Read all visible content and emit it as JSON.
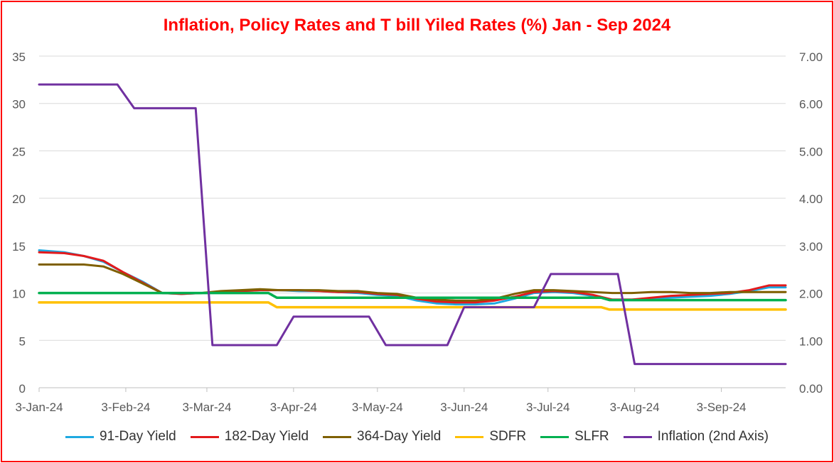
{
  "chart_data": {
    "type": "line",
    "title": "Inflation, Policy Rates and T bill Yiled Rates (%) Jan - Sep 2024",
    "x_tick_labels": [
      "3-Jan-24",
      "3-Feb-24",
      "3-Mar-24",
      "3-Apr-24",
      "3-May-24",
      "3-Jun-24",
      "3-Jul-24",
      "3-Aug-24",
      "3-Sep-24"
    ],
    "x_tick_dates": [
      "2024-01-03",
      "2024-02-03",
      "2024-03-03",
      "2024-04-03",
      "2024-05-03",
      "2024-06-03",
      "2024-07-03",
      "2024-08-03",
      "2024-09-03"
    ],
    "xlim": [
      "2024-01-03",
      "2024-09-26"
    ],
    "ylim": [
      0,
      35
    ],
    "y_ticks": [
      "0",
      "5",
      "10",
      "15",
      "20",
      "25",
      "30",
      "35"
    ],
    "y2lim": [
      0,
      7
    ],
    "y2_ticks": [
      "0.00",
      "1.00",
      "2.00",
      "3.00",
      "4.00",
      "5.00",
      "6.00",
      "7.00"
    ],
    "grid": "horizontal",
    "legend_position": "bottom",
    "series": [
      {
        "name": "91-Day Yield",
        "color": "#1fa9e1",
        "axis": "left",
        "points": [
          [
            "2024-01-03",
            14.5
          ],
          [
            "2024-01-12",
            14.3
          ],
          [
            "2024-01-19",
            13.9
          ],
          [
            "2024-01-26",
            13.3
          ],
          [
            "2024-02-02",
            12.2
          ],
          [
            "2024-02-09",
            11.2
          ],
          [
            "2024-02-16",
            10.0
          ],
          [
            "2024-02-23",
            9.9
          ],
          [
            "2024-03-01",
            10.0
          ],
          [
            "2024-03-08",
            10.1
          ],
          [
            "2024-03-15",
            10.2
          ],
          [
            "2024-03-22",
            10.3
          ],
          [
            "2024-03-29",
            10.3
          ],
          [
            "2024-04-05",
            10.2
          ],
          [
            "2024-04-12",
            10.2
          ],
          [
            "2024-04-19",
            10.1
          ],
          [
            "2024-04-26",
            10.0
          ],
          [
            "2024-05-03",
            9.8
          ],
          [
            "2024-05-10",
            9.7
          ],
          [
            "2024-05-17",
            9.2
          ],
          [
            "2024-05-24",
            8.9
          ],
          [
            "2024-05-31",
            8.8
          ],
          [
            "2024-06-07",
            8.8
          ],
          [
            "2024-06-14",
            8.9
          ],
          [
            "2024-06-21",
            9.4
          ],
          [
            "2024-06-28",
            10.0
          ],
          [
            "2024-07-05",
            10.1
          ],
          [
            "2024-07-12",
            10.0
          ],
          [
            "2024-07-19",
            9.7
          ],
          [
            "2024-07-26",
            9.3
          ],
          [
            "2024-08-02",
            9.3
          ],
          [
            "2024-08-09",
            9.4
          ],
          [
            "2024-08-16",
            9.5
          ],
          [
            "2024-08-23",
            9.6
          ],
          [
            "2024-08-30",
            9.7
          ],
          [
            "2024-09-06",
            9.9
          ],
          [
            "2024-09-13",
            10.2
          ],
          [
            "2024-09-20",
            10.6
          ],
          [
            "2024-09-26",
            10.6
          ]
        ]
      },
      {
        "name": "182-Day Yield",
        "color": "#e31a1c",
        "axis": "left",
        "points": [
          [
            "2024-01-03",
            14.3
          ],
          [
            "2024-01-12",
            14.2
          ],
          [
            "2024-01-19",
            13.9
          ],
          [
            "2024-01-26",
            13.4
          ],
          [
            "2024-02-02",
            12.2
          ],
          [
            "2024-02-09",
            11.1
          ],
          [
            "2024-02-16",
            10.0
          ],
          [
            "2024-02-23",
            9.9
          ],
          [
            "2024-03-01",
            10.0
          ],
          [
            "2024-03-08",
            10.1
          ],
          [
            "2024-03-15",
            10.2
          ],
          [
            "2024-03-22",
            10.3
          ],
          [
            "2024-03-29",
            10.3
          ],
          [
            "2024-04-05",
            10.3
          ],
          [
            "2024-04-12",
            10.2
          ],
          [
            "2024-04-19",
            10.1
          ],
          [
            "2024-04-26",
            10.1
          ],
          [
            "2024-05-03",
            9.9
          ],
          [
            "2024-05-10",
            9.8
          ],
          [
            "2024-05-17",
            9.4
          ],
          [
            "2024-05-24",
            9.1
          ],
          [
            "2024-05-31",
            9.0
          ],
          [
            "2024-06-07",
            9.0
          ],
          [
            "2024-06-14",
            9.2
          ],
          [
            "2024-06-21",
            9.6
          ],
          [
            "2024-06-28",
            10.1
          ],
          [
            "2024-07-05",
            10.2
          ],
          [
            "2024-07-12",
            10.1
          ],
          [
            "2024-07-19",
            9.8
          ],
          [
            "2024-07-26",
            9.3
          ],
          [
            "2024-08-02",
            9.3
          ],
          [
            "2024-08-09",
            9.5
          ],
          [
            "2024-08-16",
            9.7
          ],
          [
            "2024-08-23",
            9.8
          ],
          [
            "2024-08-30",
            9.9
          ],
          [
            "2024-09-06",
            10.0
          ],
          [
            "2024-09-13",
            10.3
          ],
          [
            "2024-09-20",
            10.8
          ],
          [
            "2024-09-26",
            10.8
          ]
        ]
      },
      {
        "name": "364-Day Yield",
        "color": "#7f6000",
        "axis": "left",
        "points": [
          [
            "2024-01-03",
            13.0
          ],
          [
            "2024-01-12",
            13.0
          ],
          [
            "2024-01-19",
            13.0
          ],
          [
            "2024-01-26",
            12.8
          ],
          [
            "2024-02-02",
            12.0
          ],
          [
            "2024-02-09",
            11.0
          ],
          [
            "2024-02-16",
            10.0
          ],
          [
            "2024-02-23",
            10.0
          ],
          [
            "2024-03-01",
            10.0
          ],
          [
            "2024-03-08",
            10.2
          ],
          [
            "2024-03-15",
            10.3
          ],
          [
            "2024-03-22",
            10.4
          ],
          [
            "2024-03-29",
            10.3
          ],
          [
            "2024-04-05",
            10.3
          ],
          [
            "2024-04-12",
            10.3
          ],
          [
            "2024-04-19",
            10.2
          ],
          [
            "2024-04-26",
            10.2
          ],
          [
            "2024-05-03",
            10.0
          ],
          [
            "2024-05-10",
            9.9
          ],
          [
            "2024-05-17",
            9.5
          ],
          [
            "2024-05-24",
            9.3
          ],
          [
            "2024-05-31",
            9.2
          ],
          [
            "2024-06-07",
            9.2
          ],
          [
            "2024-06-14",
            9.4
          ],
          [
            "2024-06-21",
            9.9
          ],
          [
            "2024-06-28",
            10.3
          ],
          [
            "2024-07-05",
            10.3
          ],
          [
            "2024-07-12",
            10.2
          ],
          [
            "2024-07-19",
            10.1
          ],
          [
            "2024-07-26",
            10.0
          ],
          [
            "2024-08-02",
            10.0
          ],
          [
            "2024-08-09",
            10.1
          ],
          [
            "2024-08-16",
            10.1
          ],
          [
            "2024-08-23",
            10.0
          ],
          [
            "2024-08-30",
            10.0
          ],
          [
            "2024-09-06",
            10.1
          ],
          [
            "2024-09-13",
            10.1
          ],
          [
            "2024-09-20",
            10.1
          ],
          [
            "2024-09-26",
            10.1
          ]
        ]
      },
      {
        "name": "SDFR",
        "color": "#ffc000",
        "axis": "left",
        "points": [
          [
            "2024-01-03",
            9.0
          ],
          [
            "2024-03-25",
            9.0
          ],
          [
            "2024-03-28",
            8.5
          ],
          [
            "2024-07-22",
            8.5
          ],
          [
            "2024-07-25",
            8.25
          ],
          [
            "2024-09-26",
            8.25
          ]
        ]
      },
      {
        "name": "SLFR",
        "color": "#00b050",
        "axis": "left",
        "points": [
          [
            "2024-01-03",
            10.0
          ],
          [
            "2024-03-25",
            10.0
          ],
          [
            "2024-03-28",
            9.5
          ],
          [
            "2024-07-22",
            9.5
          ],
          [
            "2024-07-25",
            9.25
          ],
          [
            "2024-09-26",
            9.25
          ]
        ]
      },
      {
        "name": "Inflation (2nd Axis)",
        "color": "#7030a0",
        "axis": "right",
        "points": [
          [
            "2024-01-03",
            6.4
          ],
          [
            "2024-01-31",
            6.4
          ],
          [
            "2024-02-06",
            5.9
          ],
          [
            "2024-02-28",
            5.9
          ],
          [
            "2024-03-05",
            0.9
          ],
          [
            "2024-03-28",
            0.9
          ],
          [
            "2024-04-03",
            1.5
          ],
          [
            "2024-04-30",
            1.5
          ],
          [
            "2024-05-06",
            0.9
          ],
          [
            "2024-05-28",
            0.9
          ],
          [
            "2024-06-03",
            1.7
          ],
          [
            "2024-06-28",
            1.7
          ],
          [
            "2024-07-04",
            2.4
          ],
          [
            "2024-07-28",
            2.4
          ],
          [
            "2024-08-03",
            0.5
          ],
          [
            "2024-09-26",
            0.5
          ]
        ]
      }
    ]
  }
}
